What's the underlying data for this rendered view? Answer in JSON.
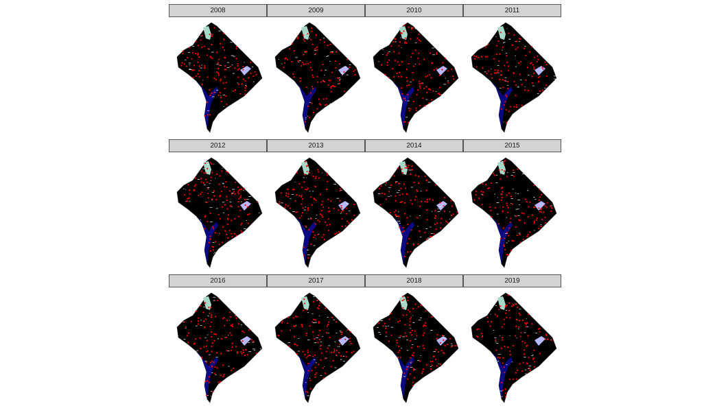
{
  "map": {
    "layout": "3 rows x 4 columns facet grid",
    "colors": {
      "land": "#000000",
      "river": "#0a0a82",
      "incident_points": "#ff0000",
      "strip_background": "#d3d3d3",
      "strip_border": "#555555",
      "parks": "#a8d8c8",
      "federal_land": "#b8b8ff"
    },
    "panels": [
      {
        "year": "2008"
      },
      {
        "year": "2009"
      },
      {
        "year": "2010"
      },
      {
        "year": "2011"
      },
      {
        "year": "2012"
      },
      {
        "year": "2013"
      },
      {
        "year": "2014"
      },
      {
        "year": "2015"
      },
      {
        "year": "2016"
      },
      {
        "year": "2017"
      },
      {
        "year": "2018"
      },
      {
        "year": "2019"
      }
    ]
  }
}
